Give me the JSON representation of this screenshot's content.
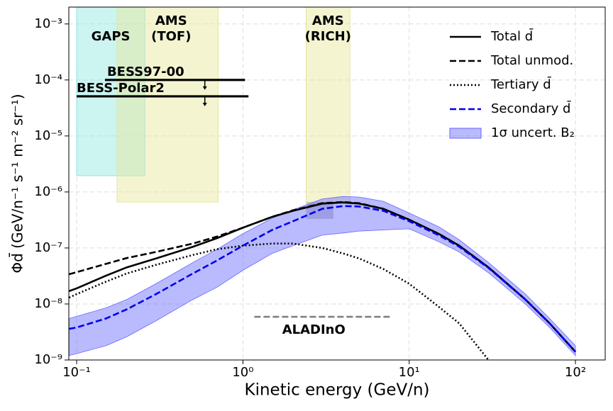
{
  "chart_data": {
    "type": "line",
    "x_label": "Kinetic energy (GeV/n)",
    "y_label": "Φd̄ (GeV/n⁻¹ s⁻¹ m⁻² sr⁻¹)",
    "x_log": true,
    "y_log": true,
    "grid": true,
    "legend": "upper right",
    "xlim": [
      0.0897,
      151
    ],
    "ylim": [
      1e-09,
      0.002
    ],
    "xticks": [
      {
        "value": 0.1,
        "label": "10⁻¹"
      },
      {
        "value": 1,
        "label": "10⁰"
      },
      {
        "value": 10,
        "label": "10¹"
      },
      {
        "value": 100,
        "label": "10²"
      }
    ],
    "yticks": [
      {
        "value": 1e-09,
        "label": "10⁻⁹"
      },
      {
        "value": 1e-08,
        "label": "10⁻⁸"
      },
      {
        "value": 1e-07,
        "label": "10⁻⁷"
      },
      {
        "value": 1e-06,
        "label": "10⁻⁶"
      },
      {
        "value": 1e-05,
        "label": "10⁻⁵"
      },
      {
        "value": 0.0001,
        "label": "10⁻⁴"
      },
      {
        "value": 0.001,
        "label": "10⁻³"
      }
    ],
    "x": [
      0.09,
      0.1,
      0.15,
      0.2,
      0.3,
      0.5,
      0.7,
      1,
      1.5,
      2,
      3,
      4,
      5,
      7,
      10,
      15,
      20,
      30,
      50,
      70,
      100
    ],
    "series": [
      {
        "name": "Total d̄",
        "color": "#000000",
        "dash": "solid",
        "values": [
          1.7e-08,
          1.9e-08,
          3.2e-08,
          4.5e-08,
          6.5e-08,
          1.05e-07,
          1.5e-07,
          2.3e-07,
          3.6e-07,
          4.6e-07,
          6.2e-07,
          6.5e-07,
          6.2e-07,
          5e-07,
          3.2e-07,
          1.8e-07,
          1.1e-07,
          4.5e-08,
          1.2e-08,
          4.5e-09,
          1.4e-09
        ]
      },
      {
        "name": "Total unmod.",
        "color": "#000000",
        "dash": "dashed",
        "values": [
          3.4e-08,
          3.7e-08,
          5.2e-08,
          6.6e-08,
          8.5e-08,
          1.2e-07,
          1.6e-07,
          2.3e-07,
          3.6e-07,
          4.7e-07,
          6.3e-07,
          6.6e-07,
          6.3e-07,
          5e-07,
          3.2e-07,
          1.8e-07,
          1.1e-07,
          4.5e-08,
          1.2e-08,
          4.5e-09,
          1.4e-09
        ]
      },
      {
        "name": "Tertiary d̄",
        "color": "#000000",
        "dash": "dotted",
        "values": [
          1.3e-08,
          1.5e-08,
          2.5e-08,
          3.5e-08,
          5e-08,
          7.5e-08,
          9.5e-08,
          1.1e-07,
          1.2e-07,
          1.2e-07,
          1e-07,
          8e-08,
          6.5e-08,
          4.2e-08,
          2.3e-08,
          9e-09,
          4.5e-09,
          1e-09,
          null,
          null,
          null
        ]
      },
      {
        "name": "Secondary d̄",
        "color": "#0000ee",
        "dash": "dashed",
        "values": [
          3.6e-09,
          3.8e-09,
          5.5e-09,
          8e-09,
          1.5e-08,
          3.5e-08,
          6e-08,
          1.1e-07,
          2.1e-07,
          3e-07,
          5e-07,
          5.6e-07,
          5.5e-07,
          4.6e-07,
          3e-07,
          1.7e-07,
          1.05e-07,
          4.4e-08,
          1.2e-08,
          4.5e-09,
          1.4e-09
        ]
      }
    ],
    "band": {
      "name": "1σ uncert. B₂",
      "color": "#6666ff",
      "upper": [
        5.5e-09,
        6e-09,
        8.5e-09,
        1.2e-08,
        2.3e-08,
        5.5e-08,
        9.5e-08,
        1.8e-07,
        3.4e-07,
        4.8e-07,
        7.5e-07,
        8.3e-07,
        8.1e-07,
        6.8e-07,
        4.2e-07,
        2.4e-07,
        1.4e-07,
        5.5e-08,
        1.5e-08,
        5.5e-09,
        1.8e-09
      ],
      "lower": [
        1.2e-09,
        1.3e-09,
        1.8e-09,
        2.6e-09,
        5e-09,
        1.2e-08,
        2e-08,
        4e-08,
        8e-08,
        1.1e-07,
        1.7e-07,
        1.85e-07,
        2e-07,
        2.1e-07,
        2.2e-07,
        1.3e-07,
        8.5e-08,
        3.6e-08,
        1e-08,
        3.8e-09,
        1.2e-09
      ]
    },
    "regions": [
      {
        "label": [
          "GAPS"
        ],
        "color": "#8ee6e0",
        "xrange": [
          0.1,
          0.257
        ],
        "ymin": 1.95e-06
      },
      {
        "label": [
          "AMS",
          "(TOF)"
        ],
        "color": "#e6e69a",
        "xrange": [
          0.175,
          0.71
        ],
        "ymin": 6.6e-07
      },
      {
        "label": [
          "AMS",
          "(RICH)"
        ],
        "color": "#e6e69a",
        "xrange": [
          2.4,
          4.4
        ],
        "ymin": 6.6e-07
      }
    ],
    "box": {
      "color": "#999999",
      "xrange": [
        2.4,
        3.5
      ],
      "yrange": [
        3.3e-07,
        6.6e-07
      ]
    },
    "limits": [
      {
        "label": "BESS97-00",
        "xrange": [
          0.148,
          1.03
        ],
        "y": 0.0001,
        "arrow_x": 0.59
      },
      {
        "label": "BESS-Polar2",
        "xrange": [
          0.1,
          1.08
        ],
        "y": 5.1e-05,
        "arrow_x": 0.59
      }
    ],
    "projection": {
      "label": "ALADInO",
      "color": "#808080",
      "xrange": [
        1.17,
        7.7
      ],
      "y": 5.9e-09
    }
  }
}
